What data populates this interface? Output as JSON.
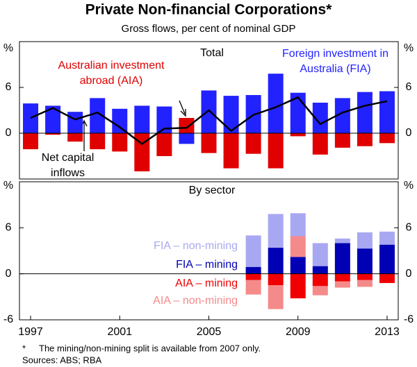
{
  "title": "Private Non-financial Corporations*",
  "subtitle": "Gross flows, per cent of nominal GDP",
  "footnote_mark": "*",
  "footnote": "The mining/non-mining split is available from 2007 only.",
  "sources": "Sources: ABS; RBA",
  "chart_data": [
    {
      "type": "bar",
      "title": "Total",
      "unit": "%",
      "ylim": [
        -6,
        12
      ],
      "yticks": [
        0,
        6
      ],
      "series": [
        {
          "name": "Foreign investment in Australia (FIA)",
          "color": "#2222ff",
          "values": [
            3.9,
            3.6,
            2.8,
            4.6,
            3.2,
            3.6,
            3.5,
            -1.4,
            5.6,
            4.9,
            5.0,
            7.8,
            5.3,
            4.0,
            4.6,
            5.4,
            5.5
          ]
        },
        {
          "name": "Australian investment abroad (AIA)",
          "color": "#e00000",
          "values": [
            -2.1,
            -0.2,
            -1.1,
            -2.1,
            -2.4,
            -5.0,
            -3.0,
            2.0,
            -2.6,
            -4.6,
            -2.7,
            -4.6,
            -0.4,
            -2.8,
            -1.9,
            -1.7,
            -1.3
          ]
        },
        {
          "name": "Net capital inflows",
          "type": "line",
          "color": "#000000",
          "values": [
            2.0,
            3.3,
            1.8,
            2.7,
            0.8,
            -1.4,
            0.6,
            0.7,
            3.0,
            0.3,
            2.4,
            3.4,
            4.7,
            1.2,
            2.7,
            3.6,
            4.2
          ]
        }
      ]
    },
    {
      "type": "stacked_bar",
      "title": "By sector",
      "unit": "%",
      "ylim": [
        -6,
        12
      ],
      "yticks": [
        -6,
        0,
        6
      ],
      "categories": [
        "1997",
        null,
        null,
        null,
        "2001",
        null,
        null,
        null,
        "2005",
        null,
        null,
        null,
        "2009",
        null,
        null,
        null,
        "2013"
      ],
      "series": [
        {
          "name": "FIA – mining",
          "color": "#0000b4",
          "values": [
            null,
            null,
            null,
            null,
            null,
            null,
            null,
            null,
            null,
            null,
            0.9,
            3.4,
            2.2,
            1.0,
            4.0,
            3.3,
            3.8
          ]
        },
        {
          "name": "AIA – mining",
          "color": "#f00000",
          "values": [
            null,
            null,
            null,
            null,
            null,
            null,
            null,
            null,
            null,
            null,
            -0.8,
            -1.5,
            -3.2,
            -1.6,
            -1.0,
            -0.8,
            -1.2
          ]
        },
        {
          "name": "AIA – non-mining",
          "color": "#f58a8a",
          "values": [
            null,
            null,
            null,
            null,
            null,
            null,
            null,
            null,
            null,
            null,
            -1.9,
            -3.1,
            2.7,
            -1.2,
            -0.8,
            -0.9,
            0
          ]
        },
        {
          "name": "FIA – non-mining",
          "color": "#a8a8f2",
          "values": [
            null,
            null,
            null,
            null,
            null,
            null,
            null,
            null,
            null,
            null,
            4.1,
            4.4,
            3.0,
            3.0,
            0.6,
            2.1,
            1.7
          ]
        }
      ]
    }
  ]
}
